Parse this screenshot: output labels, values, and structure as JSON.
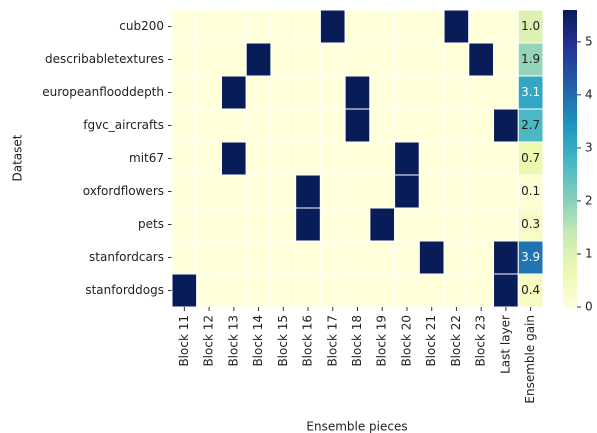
{
  "chart_data": {
    "type": "heatmap",
    "xlabel": "Ensemble pieces",
    "ylabel": "Dataset",
    "rows": [
      "cub200",
      "describabletextures",
      "europeanflooddepth",
      "fgvc_aircrafts",
      "mit67",
      "oxfordflowers",
      "pets",
      "stanfordcars",
      "stanforddogs"
    ],
    "columns": [
      "Block 11",
      "Block 12",
      "Block 13",
      "Block 14",
      "Block 15",
      "Block 16",
      "Block 17",
      "Block 18",
      "Block 19",
      "Block 20",
      "Block 21",
      "Block 22",
      "Block 23",
      "Last layer",
      "Ensemble gain"
    ],
    "values": [
      [
        0,
        0,
        0,
        0,
        0,
        0,
        5.6,
        0,
        0,
        0,
        0,
        5.6,
        0,
        0,
        1.0
      ],
      [
        0,
        0,
        0,
        5.6,
        0,
        0,
        0,
        0,
        0,
        0,
        0,
        0,
        5.6,
        0,
        1.9
      ],
      [
        0,
        0,
        5.6,
        0,
        0,
        0,
        0,
        5.6,
        0,
        0,
        0,
        0,
        0,
        0,
        3.1
      ],
      [
        0,
        0,
        0,
        0,
        0,
        0,
        0,
        5.6,
        0,
        0,
        0,
        0,
        0,
        5.6,
        2.7
      ],
      [
        0,
        0,
        5.6,
        0,
        0,
        0,
        0,
        0,
        0,
        5.6,
        0,
        0,
        0,
        0,
        0.7
      ],
      [
        0,
        0,
        0,
        0,
        0,
        5.6,
        0,
        0,
        0,
        5.6,
        0,
        0,
        0,
        0,
        0.1
      ],
      [
        0,
        0,
        0,
        0,
        0,
        5.6,
        0,
        0,
        5.6,
        0,
        0,
        0,
        0,
        0,
        0.3
      ],
      [
        0,
        0,
        0,
        0,
        0,
        0,
        0,
        0,
        0,
        0,
        5.6,
        0,
        0,
        5.6,
        3.9
      ],
      [
        5.6,
        0,
        0,
        0,
        0,
        0,
        0,
        0,
        0,
        0,
        0,
        0,
        0,
        5.6,
        0.4
      ]
    ],
    "value_labels": [
      [
        null,
        null,
        null,
        null,
        null,
        null,
        null,
        null,
        null,
        null,
        null,
        null,
        null,
        null,
        "1.0"
      ],
      [
        null,
        null,
        null,
        null,
        null,
        null,
        null,
        null,
        null,
        null,
        null,
        null,
        null,
        null,
        "1.9"
      ],
      [
        null,
        null,
        null,
        null,
        null,
        null,
        null,
        null,
        null,
        null,
        null,
        null,
        null,
        null,
        "3.1"
      ],
      [
        null,
        null,
        null,
        null,
        null,
        null,
        null,
        null,
        null,
        null,
        null,
        null,
        null,
        null,
        "2.7"
      ],
      [
        null,
        null,
        null,
        null,
        null,
        null,
        null,
        null,
        null,
        null,
        null,
        null,
        null,
        null,
        "0.7"
      ],
      [
        null,
        null,
        null,
        null,
        null,
        null,
        null,
        null,
        null,
        null,
        null,
        null,
        null,
        null,
        "0.1"
      ],
      [
        null,
        null,
        null,
        null,
        null,
        null,
        null,
        null,
        null,
        null,
        null,
        null,
        null,
        null,
        "0.3"
      ],
      [
        null,
        null,
        null,
        null,
        null,
        null,
        null,
        null,
        null,
        null,
        null,
        null,
        null,
        null,
        "3.9"
      ],
      [
        null,
        null,
        null,
        null,
        null,
        null,
        null,
        null,
        null,
        null,
        null,
        null,
        null,
        null,
        "0.4"
      ]
    ],
    "zlim": [
      0,
      5.6
    ],
    "zticks": [
      0,
      1,
      2,
      3,
      4,
      5
    ],
    "colors": [
      "#ffffd9",
      "#edf8b1",
      "#c7e9b4",
      "#7fcdbb",
      "#41b6c4",
      "#1d91c0",
      "#225ea8",
      "#253494",
      "#081d58"
    ]
  }
}
